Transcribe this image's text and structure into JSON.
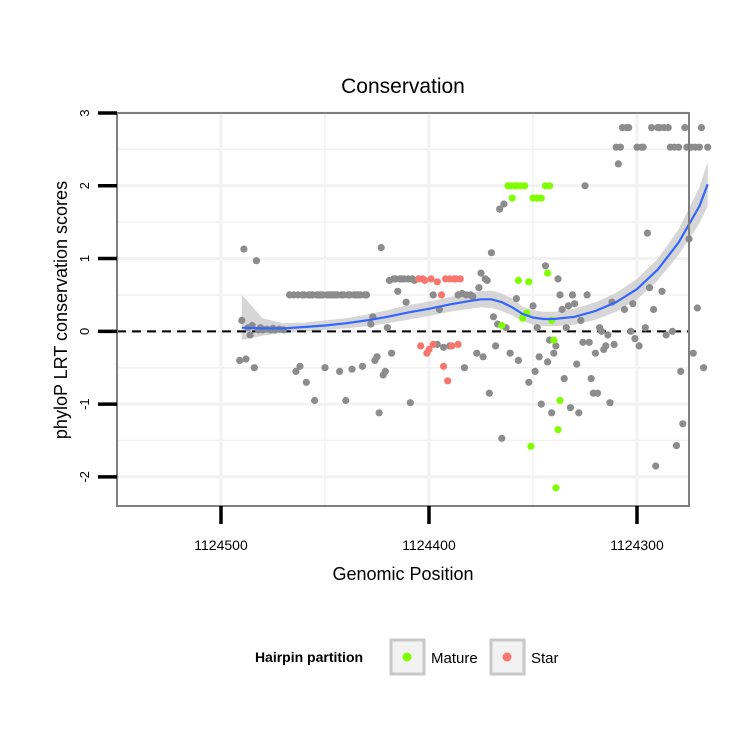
{
  "chart_data": {
    "type": "scatter",
    "title": "Conservation",
    "xlabel": "Genomic Position",
    "ylabel": "phyloP LRT conservation scores",
    "x_reversed": true,
    "xlim": [
      1124550,
      1124275
    ],
    "ylim": [
      -2.4,
      3.0
    ],
    "x_ticks": [
      1124500,
      1124400,
      1124300
    ],
    "x_tick_labels": [
      "1124500",
      "1124400",
      "1124300"
    ],
    "y_ticks": [
      -2,
      -1,
      0,
      1,
      2,
      3
    ],
    "y_tick_labels": [
      "-2",
      "-1",
      "0",
      "1",
      "2",
      "3"
    ],
    "reference_line": {
      "y": 0,
      "style": "dashed",
      "color": "#000000"
    },
    "grid": true,
    "background": "white",
    "legend": {
      "title": "Hairpin partition",
      "position": "bottom",
      "entries": [
        {
          "label": "Mature",
          "color": "#7FFF00"
        },
        {
          "label": "Star",
          "color": "#F8766D"
        }
      ]
    },
    "colors": {
      "other": "#8C8C8C",
      "Mature": "#7FFF00",
      "Star": "#F8766D",
      "smooth": "#3366FF",
      "band": "#C8C8C8"
    },
    "series": [
      {
        "name": "",
        "partition": "other",
        "color": "#8C8C8C",
        "points": [
          [
            1124491,
            -0.4
          ],
          [
            1124490,
            0.15
          ],
          [
            1124489,
            1.13
          ],
          [
            1124488,
            -0.38
          ],
          [
            1124487,
            0.05
          ],
          [
            1124486,
            -0.05
          ],
          [
            1124485,
            0.08
          ],
          [
            1124484,
            -0.5
          ],
          [
            1124483,
            0.97
          ],
          [
            1124482,
            0.02
          ],
          [
            1124481,
            0.05
          ],
          [
            1124480,
            0.02
          ],
          [
            1124478,
            0.03
          ],
          [
            1124476,
            0.02
          ],
          [
            1124475,
            0.04
          ],
          [
            1124474,
            0.02
          ],
          [
            1124472,
            0.03
          ],
          [
            1124470,
            0.02
          ],
          [
            1124467,
            0.5
          ],
          [
            1124465,
            0.5
          ],
          [
            1124464,
            -0.55
          ],
          [
            1124463,
            0.5
          ],
          [
            1124462,
            -0.48
          ],
          [
            1124461,
            0.5
          ],
          [
            1124460,
            0.5
          ],
          [
            1124459,
            -0.7
          ],
          [
            1124458,
            0.5
          ],
          [
            1124457,
            0.5
          ],
          [
            1124456,
            0.5
          ],
          [
            1124455,
            -0.95
          ],
          [
            1124454,
            0.5
          ],
          [
            1124453,
            0.5
          ],
          [
            1124452,
            0.5
          ],
          [
            1124451,
            0.5
          ],
          [
            1124450,
            -0.5
          ],
          [
            1124449,
            0.5
          ],
          [
            1124448,
            0.5
          ],
          [
            1124447,
            0.5
          ],
          [
            1124446,
            0.5
          ],
          [
            1124445,
            0.5
          ],
          [
            1124444,
            0.5
          ],
          [
            1124443,
            -0.55
          ],
          [
            1124442,
            0.5
          ],
          [
            1124441,
            0.5
          ],
          [
            1124440,
            -0.95
          ],
          [
            1124439,
            0.5
          ],
          [
            1124438,
            0.5
          ],
          [
            1124437,
            -0.52
          ],
          [
            1124436,
            0.5
          ],
          [
            1124435,
            0.5
          ],
          [
            1124434,
            0.5
          ],
          [
            1124433,
            0.5
          ],
          [
            1124432,
            -0.48
          ],
          [
            1124431,
            0.5
          ],
          [
            1124430,
            0.5
          ],
          [
            1124428,
            0.1
          ],
          [
            1124427,
            0.2
          ],
          [
            1124426,
            -0.4
          ],
          [
            1124425,
            -0.35
          ],
          [
            1124424,
            -1.12
          ],
          [
            1124423,
            1.15
          ],
          [
            1124422,
            -0.6
          ],
          [
            1124421,
            -0.55
          ],
          [
            1124420,
            0.05
          ],
          [
            1124419,
            0.7
          ],
          [
            1124418,
            -0.3
          ],
          [
            1124417,
            0.72
          ],
          [
            1124416,
            0.72
          ],
          [
            1124415,
            0.55
          ],
          [
            1124414,
            0.72
          ],
          [
            1124413,
            0.72
          ],
          [
            1124412,
            0.72
          ],
          [
            1124411,
            0.4
          ],
          [
            1124410,
            0.72
          ],
          [
            1124409,
            -0.98
          ],
          [
            1124408,
            0.72
          ],
          [
            1124407,
            0.7
          ],
          [
            1124398,
            0.5
          ],
          [
            1124396,
            -0.18
          ],
          [
            1124395,
            0.3
          ],
          [
            1124393,
            -0.22
          ],
          [
            1124390,
            -0.2
          ],
          [
            1124386,
            0.5
          ],
          [
            1124384,
            0.52
          ],
          [
            1124383,
            -0.5
          ],
          [
            1124382,
            0.5
          ],
          [
            1124380,
            0.5
          ],
          [
            1124379,
            0.48
          ],
          [
            1124377,
            -0.3
          ],
          [
            1124376,
            0.6
          ],
          [
            1124375,
            0.8
          ],
          [
            1124374,
            -0.35
          ],
          [
            1124373,
            0.72
          ],
          [
            1124372,
            0.7
          ],
          [
            1124371,
            -0.85
          ],
          [
            1124370,
            1.08
          ],
          [
            1124369,
            0.2
          ],
          [
            1124368,
            -0.2
          ],
          [
            1124367,
            0.1
          ],
          [
            1124366,
            1.68
          ],
          [
            1124365,
            -1.47
          ],
          [
            1124364,
            1.75
          ],
          [
            1124363,
            0.05
          ],
          [
            1124361,
            -0.3
          ],
          [
            1124358,
            0.45
          ],
          [
            1124357,
            -0.4
          ],
          [
            1124352,
            -0.7
          ],
          [
            1124350,
            0.35
          ],
          [
            1124349,
            -0.55
          ],
          [
            1124348,
            0.05
          ],
          [
            1124347,
            -0.35
          ],
          [
            1124346,
            -1.0
          ],
          [
            1124344,
            0.9
          ],
          [
            1124343,
            -0.42
          ],
          [
            1124342,
            -0.12
          ],
          [
            1124341,
            -1.12
          ],
          [
            1124340,
            -0.3
          ],
          [
            1124339,
            -0.2
          ],
          [
            1124338,
            0.72
          ],
          [
            1124337,
            0.5
          ],
          [
            1124336,
            0.3
          ],
          [
            1124335,
            -0.65
          ],
          [
            1124334,
            0.05
          ],
          [
            1124333,
            0.35
          ],
          [
            1124332,
            -1.05
          ],
          [
            1124331,
            0.5
          ],
          [
            1124330,
            0.38
          ],
          [
            1124329,
            -0.45
          ],
          [
            1124328,
            -1.12
          ],
          [
            1124327,
            0.15
          ],
          [
            1124326,
            -0.15
          ],
          [
            1124325,
            2.0
          ],
          [
            1124324,
            0.5
          ],
          [
            1124323,
            -0.15
          ],
          [
            1124322,
            -0.65
          ],
          [
            1124321,
            -0.85
          ],
          [
            1124320,
            -0.3
          ],
          [
            1124319,
            -0.85
          ],
          [
            1124318,
            0.05
          ],
          [
            1124317,
            0.0
          ],
          [
            1124316,
            -0.25
          ],
          [
            1124315,
            -0.2
          ],
          [
            1124314,
            -0.05
          ],
          [
            1124313,
            -0.98
          ],
          [
            1124312,
            0.4
          ],
          [
            1124311,
            -0.18
          ],
          [
            1124310,
            2.53
          ],
          [
            1124309,
            2.3
          ],
          [
            1124308,
            2.53
          ],
          [
            1124307,
            2.8
          ],
          [
            1124306,
            0.3
          ],
          [
            1124305,
            2.8
          ],
          [
            1124304,
            2.8
          ],
          [
            1124303,
            0.0
          ],
          [
            1124302,
            0.38
          ],
          [
            1124301,
            -0.1
          ],
          [
            1124300,
            2.53
          ],
          [
            1124299,
            -0.2
          ],
          [
            1124298,
            2.53
          ],
          [
            1124297,
            2.53
          ],
          [
            1124296,
            0.05
          ],
          [
            1124295,
            1.35
          ],
          [
            1124294,
            0.6
          ],
          [
            1124293,
            2.8
          ],
          [
            1124292,
            0.3
          ],
          [
            1124291,
            -1.85
          ],
          [
            1124290,
            2.8
          ],
          [
            1124289,
            2.8
          ],
          [
            1124288,
            0.55
          ],
          [
            1124287,
            2.8
          ],
          [
            1124286,
            -0.05
          ],
          [
            1124285,
            2.8
          ],
          [
            1124284,
            2.53
          ],
          [
            1124283,
            0.0
          ],
          [
            1124282,
            2.53
          ],
          [
            1124281,
            -1.57
          ],
          [
            1124280,
            2.53
          ],
          [
            1124279,
            -0.55
          ],
          [
            1124278,
            -1.27
          ],
          [
            1124277,
            2.8
          ],
          [
            1124276,
            2.53
          ],
          [
            1124275,
            1.27
          ],
          [
            1124274,
            2.53
          ],
          [
            1124273,
            -0.3
          ],
          [
            1124272,
            2.53
          ],
          [
            1124271,
            0.32
          ],
          [
            1124270,
            2.53
          ],
          [
            1124269,
            2.8
          ],
          [
            1124268,
            -0.5
          ],
          [
            1124266,
            2.53
          ]
        ]
      },
      {
        "name": "Mature",
        "partition": "Mature",
        "color": "#7FFF00",
        "points": [
          [
            1124365,
            0.08
          ],
          [
            1124362,
            2.0
          ],
          [
            1124361,
            2.0
          ],
          [
            1124360,
            1.83
          ],
          [
            1124359,
            2.0
          ],
          [
            1124358,
            2.0
          ],
          [
            1124357,
            0.7
          ],
          [
            1124356,
            2.0
          ],
          [
            1124355,
            0.18
          ],
          [
            1124354,
            2.0
          ],
          [
            1124353,
            0.25
          ],
          [
            1124352,
            0.68
          ],
          [
            1124351,
            -1.58
          ],
          [
            1124350,
            1.83
          ],
          [
            1124348,
            1.83
          ],
          [
            1124346,
            1.83
          ],
          [
            1124344,
            2.0
          ],
          [
            1124343,
            0.8
          ],
          [
            1124342,
            2.0
          ],
          [
            1124341,
            0.15
          ],
          [
            1124340,
            -0.12
          ],
          [
            1124339,
            -2.15
          ],
          [
            1124338,
            -1.35
          ],
          [
            1124337,
            -0.95
          ]
        ]
      },
      {
        "name": "Star",
        "partition": "Star",
        "color": "#F8766D",
        "points": [
          [
            1124405,
            0.72
          ],
          [
            1124404,
            -0.2
          ],
          [
            1124403,
            0.72
          ],
          [
            1124402,
            0.7
          ],
          [
            1124401,
            -0.3
          ],
          [
            1124400,
            -0.25
          ],
          [
            1124399,
            0.72
          ],
          [
            1124398,
            -0.18
          ],
          [
            1124396,
            0.68
          ],
          [
            1124394,
            0.5
          ],
          [
            1124393,
            -0.48
          ],
          [
            1124392,
            0.72
          ],
          [
            1124391,
            -0.68
          ],
          [
            1124390,
            0.72
          ],
          [
            1124389,
            -0.2
          ],
          [
            1124388,
            0.72
          ],
          [
            1124387,
            0.72
          ],
          [
            1124386,
            -0.18
          ],
          [
            1124385,
            0.72
          ]
        ]
      }
    ],
    "smooth": {
      "color": "#3366FF",
      "x": [
        1124490,
        1124480,
        1124470,
        1124460,
        1124450,
        1124440,
        1124430,
        1124420,
        1124410,
        1124400,
        1124390,
        1124380,
        1124375,
        1124370,
        1124365,
        1124360,
        1124355,
        1124350,
        1124345,
        1124340,
        1124330,
        1124320,
        1124310,
        1124300,
        1124290,
        1124280,
        1124270,
        1124266
      ],
      "y": [
        0.05,
        0.04,
        0.04,
        0.06,
        0.08,
        0.11,
        0.15,
        0.2,
        0.26,
        0.31,
        0.37,
        0.42,
        0.44,
        0.44,
        0.4,
        0.33,
        0.24,
        0.19,
        0.17,
        0.17,
        0.2,
        0.28,
        0.4,
        0.58,
        0.85,
        1.22,
        1.72,
        2.02
      ],
      "lower": [
        -0.12,
        -0.06,
        -0.02,
        0.0,
        0.02,
        0.04,
        0.07,
        0.11,
        0.16,
        0.21,
        0.27,
        0.31,
        0.33,
        0.32,
        0.28,
        0.22,
        0.14,
        0.09,
        0.07,
        0.07,
        0.09,
        0.16,
        0.27,
        0.44,
        0.7,
        1.05,
        1.48,
        1.72
      ],
      "upper": [
        0.5,
        0.18,
        0.11,
        0.12,
        0.15,
        0.18,
        0.23,
        0.29,
        0.36,
        0.41,
        0.47,
        0.53,
        0.55,
        0.56,
        0.52,
        0.45,
        0.34,
        0.29,
        0.27,
        0.27,
        0.31,
        0.4,
        0.53,
        0.72,
        1.0,
        1.4,
        1.98,
        2.33
      ]
    }
  }
}
